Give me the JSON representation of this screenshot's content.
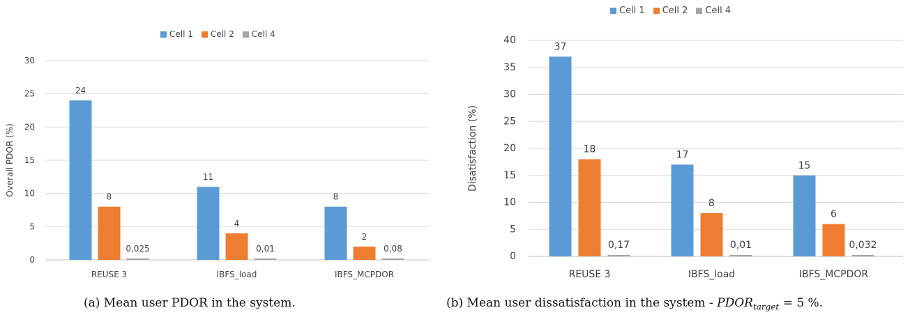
{
  "colors": {
    "series": [
      "#5b9bd5",
      "#ed7d31",
      "#a5a5a5"
    ],
    "grid": "#d9d9d9",
    "text": "#404040"
  },
  "chart_data": [
    {
      "type": "bar",
      "title": "",
      "xlabel": "",
      "ylabel": "Overall PDOR (%)",
      "categories": [
        "REUSE 3",
        "IBFS_load",
        "IBFS_MCPDOR"
      ],
      "ylim": [
        0,
        30
      ],
      "yticks": [
        0,
        5,
        10,
        15,
        20,
        25,
        30
      ],
      "grid": true,
      "legend_position": "top-center",
      "series": [
        {
          "name": "Cell 1",
          "values": [
            24,
            11,
            8
          ],
          "labels": [
            "24",
            "11",
            "8"
          ]
        },
        {
          "name": "Cell 2",
          "values": [
            8,
            4,
            2
          ],
          "labels": [
            "8",
            "4",
            "2"
          ]
        },
        {
          "name": "Cell 4",
          "values": [
            0.025,
            0.01,
            0.08
          ],
          "labels": [
            "0,025",
            "0,01",
            "0,08"
          ]
        }
      ],
      "caption": "(a) Mean user PDOR in the system."
    },
    {
      "type": "bar",
      "title": "",
      "xlabel": "",
      "ylabel": "Disatisfaction (%)",
      "categories": [
        "REUSE 3",
        "IBFS_load",
        "IBFS_MCPDOR"
      ],
      "ylim": [
        0,
        40
      ],
      "yticks": [
        0,
        5,
        10,
        15,
        20,
        25,
        30,
        35,
        40
      ],
      "grid": true,
      "legend_position": "top-center",
      "series": [
        {
          "name": "Cell 1",
          "values": [
            37,
            17,
            15
          ],
          "labels": [
            "37",
            "17",
            "15"
          ]
        },
        {
          "name": "Cell 2",
          "values": [
            18,
            8,
            6
          ],
          "labels": [
            "18",
            "8",
            "6"
          ]
        },
        {
          "name": "Cell 4",
          "values": [
            0.17,
            0.01,
            0.032
          ],
          "labels": [
            "0,17",
            "0,01",
            "0,032"
          ]
        }
      ],
      "caption_prefix": "(b) Mean user dissatisfaction in the system - ",
      "caption_math": "PDOR",
      "caption_sub": "target",
      "caption_suffix": " = 5 %."
    }
  ]
}
